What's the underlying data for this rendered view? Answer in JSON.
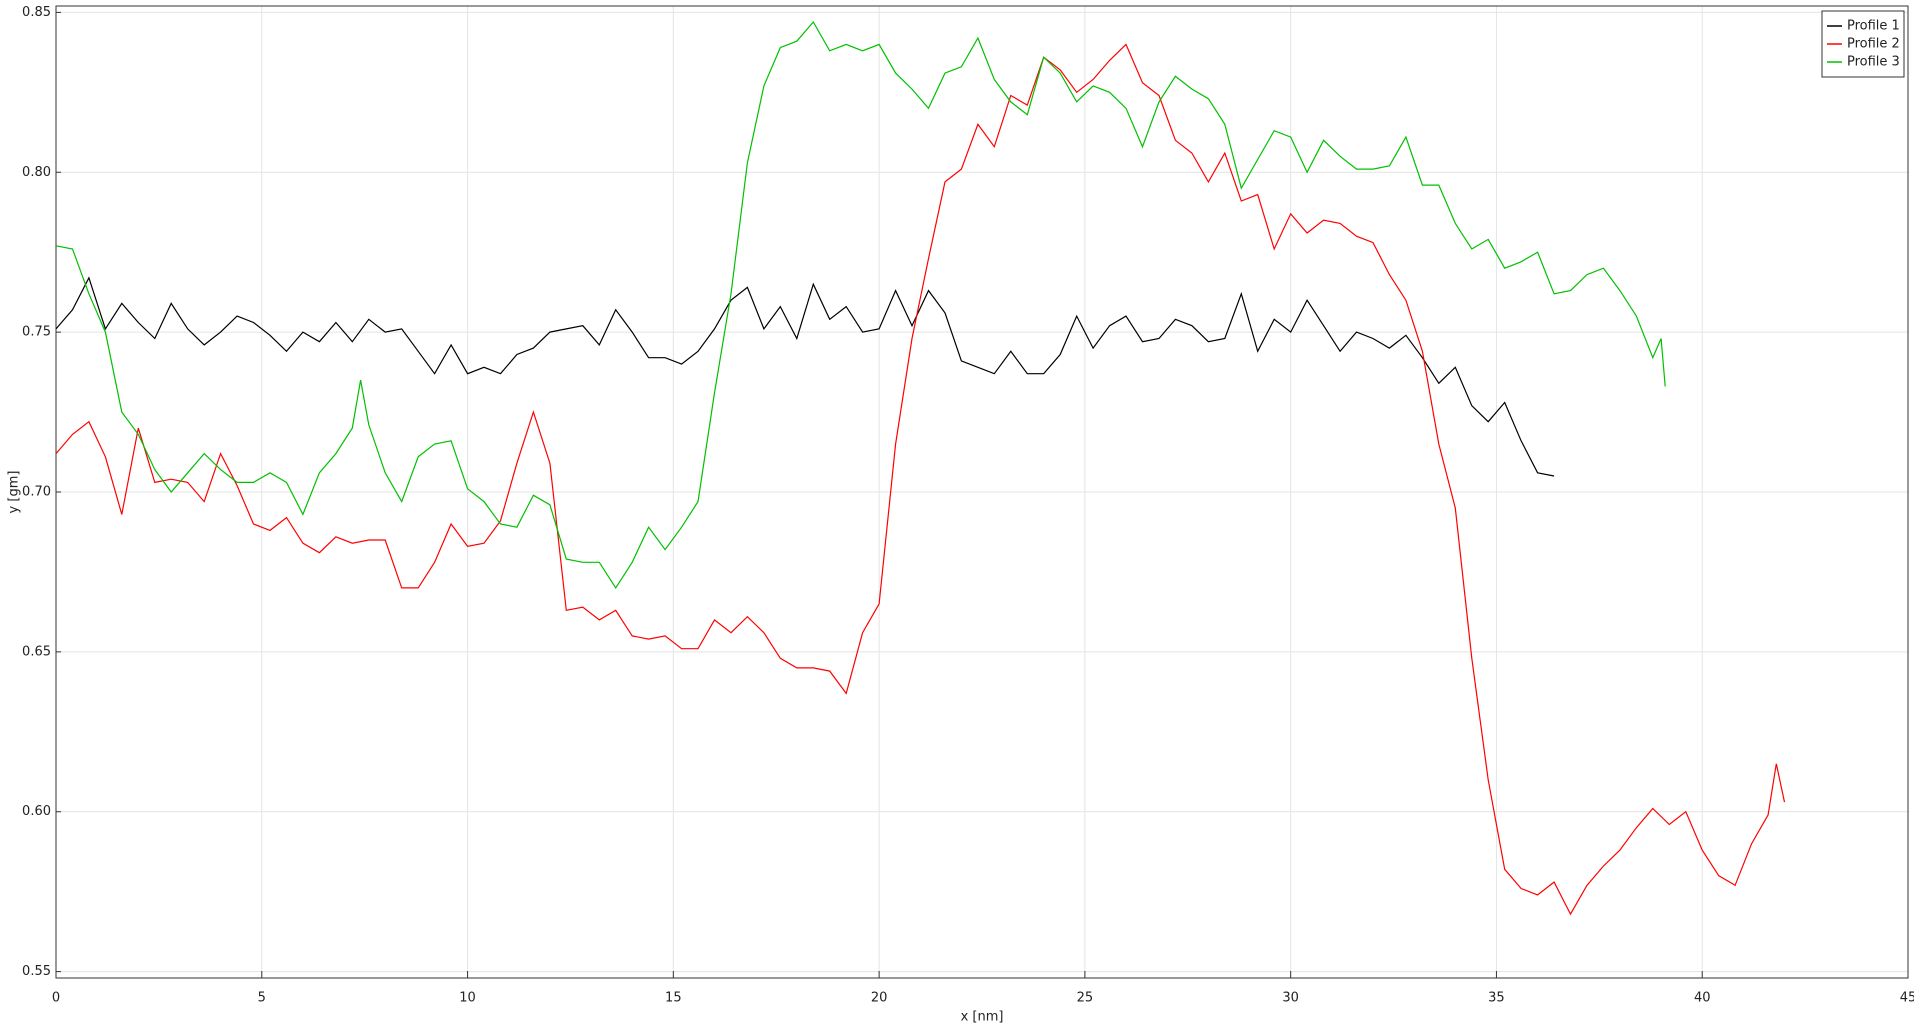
{
  "chart_data": {
    "type": "line",
    "xlabel": "x [nm]",
    "ylabel": "y [gm]",
    "xlim": [
      0,
      45
    ],
    "ylim": [
      0.548,
      0.852
    ],
    "xticks": [
      0,
      5,
      10,
      15,
      20,
      25,
      30,
      35,
      40,
      45
    ],
    "yticks": [
      0.55,
      {
        "value": 0.6,
        "label": "0.60"
      },
      0.65,
      {
        "value": 0.7,
        "label": "0.70"
      },
      0.75,
      {
        "value": 0.8,
        "label": "0.80"
      },
      0.85
    ],
    "grid": true,
    "legend": "upper-right",
    "series": [
      {
        "name": "Profile 1",
        "color": "#000000",
        "x": [
          0,
          0.4,
          0.8,
          1.2,
          1.6,
          2.0,
          2.4,
          2.8,
          3.2,
          3.6,
          4.0,
          4.4,
          4.8,
          5.2,
          5.6,
          6.0,
          6.4,
          6.8,
          7.2,
          7.6,
          8.0,
          8.4,
          8.8,
          9.2,
          9.6,
          10.0,
          10.4,
          10.8,
          11.2,
          11.6,
          12.0,
          12.4,
          12.8,
          13.2,
          13.6,
          14.0,
          14.4,
          14.8,
          15.2,
          15.6,
          16.0,
          16.4,
          16.8,
          17.2,
          17.6,
          18.0,
          18.4,
          18.8,
          19.2,
          19.6,
          20.0,
          20.4,
          20.8,
          21.2,
          21.6,
          22.0,
          22.4,
          22.8,
          23.2,
          23.6,
          24.0,
          24.4,
          24.8,
          25.2,
          25.6,
          26.0,
          26.4,
          26.8,
          27.2,
          27.6,
          28.0,
          28.4,
          28.8,
          29.2,
          29.6,
          30.0,
          30.4,
          30.8,
          31.2,
          31.6,
          32.0,
          32.4,
          32.8,
          33.2,
          33.6,
          34.0,
          34.4,
          34.8,
          35.2,
          35.6,
          36.0,
          36.4
        ],
        "values": [
          0.751,
          0.757,
          0.767,
          0.751,
          0.759,
          0.753,
          0.748,
          0.759,
          0.751,
          0.746,
          0.75,
          0.755,
          0.753,
          0.749,
          0.744,
          0.75,
          0.747,
          0.753,
          0.747,
          0.754,
          0.75,
          0.751,
          0.744,
          0.737,
          0.746,
          0.737,
          0.739,
          0.737,
          0.743,
          0.745,
          0.75,
          0.751,
          0.752,
          0.746,
          0.757,
          0.75,
          0.742,
          0.742,
          0.74,
          0.744,
          0.751,
          0.76,
          0.764,
          0.751,
          0.758,
          0.748,
          0.765,
          0.754,
          0.758,
          0.75,
          0.751,
          0.763,
          0.752,
          0.763,
          0.756,
          0.741,
          0.739,
          0.737,
          0.744,
          0.737,
          0.737,
          0.743,
          0.755,
          0.745,
          0.752,
          0.755,
          0.747,
          0.748,
          0.754,
          0.752,
          0.747,
          0.748,
          0.762,
          0.744,
          0.754,
          0.75,
          0.76,
          0.752,
          0.744,
          0.75,
          0.748,
          0.745,
          0.749,
          0.742,
          0.734,
          0.739,
          0.727,
          0.722,
          0.728,
          0.716,
          0.706,
          0.705
        ]
      },
      {
        "name": "Profile 2",
        "color": "#ff0000",
        "x": [
          0,
          0.4,
          0.8,
          1.2,
          1.6,
          2.0,
          2.4,
          2.8,
          3.2,
          3.6,
          4.0,
          4.4,
          4.8,
          5.2,
          5.6,
          6.0,
          6.4,
          6.8,
          7.2,
          7.6,
          8.0,
          8.4,
          8.8,
          9.2,
          9.6,
          10.0,
          10.4,
          10.8,
          11.2,
          11.6,
          12.0,
          12.4,
          12.8,
          13.2,
          13.6,
          14.0,
          14.4,
          14.8,
          15.2,
          15.6,
          16.0,
          16.4,
          16.8,
          17.2,
          17.6,
          18.0,
          18.4,
          18.8,
          19.2,
          19.6,
          20.0,
          20.4,
          20.8,
          21.2,
          21.6,
          22.0,
          22.4,
          22.8,
          23.2,
          23.6,
          24.0,
          24.4,
          24.8,
          25.2,
          25.6,
          26.0,
          26.4,
          26.8,
          27.2,
          27.6,
          28.0,
          28.4,
          28.8,
          29.2,
          29.6,
          30.0,
          30.4,
          30.8,
          31.2,
          31.6,
          32.0,
          32.4,
          32.8,
          33.2,
          33.6,
          34.0,
          34.4,
          34.8,
          35.2,
          35.6,
          36.0,
          36.4,
          36.8,
          37.2,
          37.6,
          38.0,
          38.4,
          38.8,
          39.2,
          39.6,
          40.0,
          40.4,
          40.8,
          41.2,
          41.6,
          41.8,
          42.0
        ],
        "values": [
          0.712,
          0.718,
          0.722,
          0.711,
          0.693,
          0.72,
          0.703,
          0.704,
          0.703,
          0.697,
          0.712,
          0.702,
          0.69,
          0.688,
          0.692,
          0.684,
          0.681,
          0.686,
          0.684,
          0.685,
          0.685,
          0.67,
          0.67,
          0.678,
          0.69,
          0.683,
          0.684,
          0.691,
          0.709,
          0.725,
          0.709,
          0.663,
          0.664,
          0.66,
          0.663,
          0.655,
          0.654,
          0.655,
          0.651,
          0.651,
          0.66,
          0.656,
          0.661,
          0.656,
          0.648,
          0.645,
          0.645,
          0.644,
          0.637,
          0.656,
          0.665,
          0.715,
          0.748,
          0.773,
          0.797,
          0.801,
          0.815,
          0.808,
          0.824,
          0.821,
          0.836,
          0.832,
          0.825,
          0.829,
          0.835,
          0.84,
          0.828,
          0.824,
          0.81,
          0.806,
          0.797,
          0.806,
          0.791,
          0.793,
          0.776,
          0.787,
          0.781,
          0.785,
          0.784,
          0.78,
          0.778,
          0.768,
          0.76,
          0.744,
          0.715,
          0.695,
          0.648,
          0.61,
          0.582,
          0.576,
          0.574,
          0.578,
          0.568,
          0.577,
          0.583,
          0.588,
          0.595,
          0.601,
          0.596,
          0.6,
          0.588,
          0.58,
          0.577,
          0.59,
          0.599,
          0.615,
          0.603
        ]
      },
      {
        "name": "Profile 3",
        "color": "#00c000",
        "x": [
          0,
          0.4,
          0.8,
          1.2,
          1.6,
          2.0,
          2.4,
          2.8,
          3.2,
          3.6,
          4.0,
          4.4,
          4.8,
          5.2,
          5.6,
          6.0,
          6.4,
          6.8,
          7.2,
          7.4,
          7.6,
          8.0,
          8.4,
          8.8,
          9.2,
          9.6,
          10.0,
          10.4,
          10.8,
          11.2,
          11.6,
          12.0,
          12.4,
          12.8,
          13.2,
          13.6,
          14.0,
          14.4,
          14.8,
          15.2,
          15.6,
          16.0,
          16.4,
          16.8,
          17.2,
          17.6,
          18.0,
          18.4,
          18.8,
          19.2,
          19.6,
          20.0,
          20.4,
          20.8,
          21.2,
          21.6,
          22.0,
          22.4,
          22.8,
          23.2,
          23.6,
          24.0,
          24.4,
          24.8,
          25.2,
          25.6,
          26.0,
          26.4,
          26.8,
          27.2,
          27.6,
          28.0,
          28.4,
          28.8,
          29.2,
          29.6,
          30.0,
          30.4,
          30.8,
          31.2,
          31.6,
          32.0,
          32.4,
          32.8,
          33.2,
          33.6,
          34.0,
          34.4,
          34.8,
          35.2,
          35.6,
          36.0,
          36.4,
          36.8,
          37.2,
          37.6,
          38.0,
          38.4,
          38.8,
          39.0,
          39.1
        ],
        "values": [
          0.777,
          0.776,
          0.762,
          0.75,
          0.725,
          0.718,
          0.707,
          0.7,
          0.706,
          0.712,
          0.707,
          0.703,
          0.703,
          0.706,
          0.703,
          0.693,
          0.706,
          0.712,
          0.72,
          0.735,
          0.721,
          0.706,
          0.697,
          0.711,
          0.715,
          0.716,
          0.701,
          0.697,
          0.69,
          0.689,
          0.699,
          0.696,
          0.679,
          0.678,
          0.678,
          0.67,
          0.678,
          0.689,
          0.682,
          0.689,
          0.697,
          0.731,
          0.762,
          0.803,
          0.827,
          0.839,
          0.841,
          0.847,
          0.838,
          0.84,
          0.838,
          0.84,
          0.831,
          0.826,
          0.82,
          0.831,
          0.833,
          0.842,
          0.829,
          0.822,
          0.818,
          0.836,
          0.831,
          0.822,
          0.827,
          0.825,
          0.82,
          0.808,
          0.822,
          0.83,
          0.826,
          0.823,
          0.815,
          0.795,
          0.804,
          0.813,
          0.811,
          0.8,
          0.81,
          0.805,
          0.801,
          0.801,
          0.802,
          0.811,
          0.796,
          0.796,
          0.784,
          0.776,
          0.779,
          0.77,
          0.772,
          0.775,
          0.762,
          0.763,
          0.768,
          0.77,
          0.763,
          0.755,
          0.742,
          0.748,
          0.733
        ]
      }
    ]
  }
}
